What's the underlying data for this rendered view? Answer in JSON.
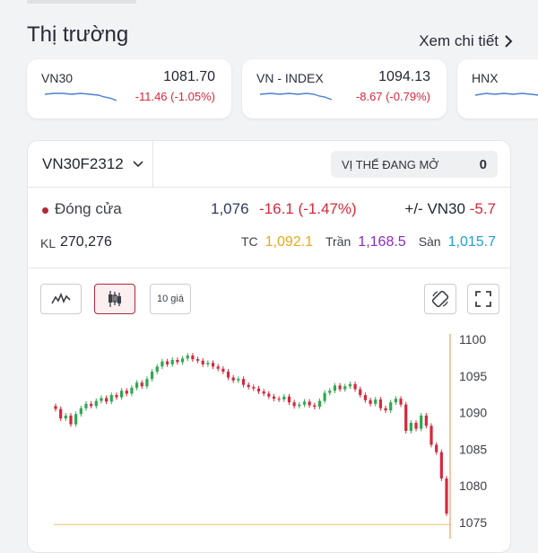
{
  "section": {
    "title": "Thị trường",
    "see_more": "Xem chi tiết"
  },
  "indices": [
    {
      "name": "VN30",
      "value": "1081.70",
      "change": "-11.46 (-1.05%)"
    },
    {
      "name": "VN - INDEX",
      "value": "1094.13",
      "change": "-8.67 (-0.79%)"
    },
    {
      "name": "HNX",
      "value": "",
      "change": ""
    }
  ],
  "contract": {
    "code": "VN30F2312",
    "open_position_label": "VỊ THẾ ĐANG MỞ",
    "open_position_value": "0",
    "close_label": "Đóng cửa",
    "close_value": "1,076",
    "close_change": "-16.1 (-1.47%)",
    "basis_label": "+/- VN30",
    "basis_value": "-5.7",
    "volume_label": "KL",
    "volume_value": "270,276",
    "ref_label": "TC",
    "ref_value": "1,092.1",
    "ceiling_label": "Trần",
    "ceiling_value": "1,168.5",
    "floor_label": "Sàn",
    "floor_value": "1,015.7"
  },
  "toolbar": {
    "line_icon": "line-chart-icon",
    "candle_icon": "candlestick-icon",
    "ten_price_label": "10 giá",
    "rotate_icon": "rotate-screen-icon",
    "fullscreen_icon": "fullscreen-icon"
  },
  "colors": {
    "up": "#2fa84f",
    "down": "#d5283c",
    "ref": "#e8a817",
    "ceiling": "#8a2ac7",
    "floor": "#1e9ed8"
  },
  "chart_data": {
    "type": "candlestick",
    "y_ticks": [
      "1100",
      "1095",
      "1090",
      "1085",
      "1080",
      "1075"
    ],
    "ylim": [
      1074,
      1101
    ],
    "series": [
      {
        "values": [
          1090.5,
          1089.2,
          1089.6,
          1088.4,
          1089.8,
          1090.6,
          1091.2,
          1090.9,
          1091.6,
          1092.0,
          1091.5,
          1092.4,
          1092.1,
          1093.0,
          1092.6,
          1093.4,
          1094.1,
          1093.6,
          1094.6,
          1095.6,
          1096.3,
          1097.0,
          1096.6,
          1097.2,
          1096.9,
          1097.4,
          1097.8,
          1097.3,
          1097.1,
          1096.6,
          1096.8,
          1096.3,
          1096.0,
          1095.6,
          1094.8,
          1094.4,
          1094.6,
          1093.8,
          1093.5,
          1093.3,
          1092.9,
          1092.6,
          1092.2,
          1091.9,
          1091.8,
          1092.2,
          1091.4,
          1090.9,
          1091.1,
          1091.5,
          1091.0,
          1090.8,
          1091.6,
          1092.7,
          1093.0,
          1093.7,
          1093.2,
          1093.6,
          1093.9,
          1093.2,
          1092.4,
          1091.7,
          1091.2,
          1091.8,
          1090.6,
          1090.3,
          1091.4,
          1091.9,
          1091.1,
          1087.5,
          1088.6,
          1087.8,
          1089.6,
          1088.2,
          1085.6,
          1084.6,
          1081.0,
          1076.2
        ]
      }
    ],
    "ref_line": 1074.7
  }
}
